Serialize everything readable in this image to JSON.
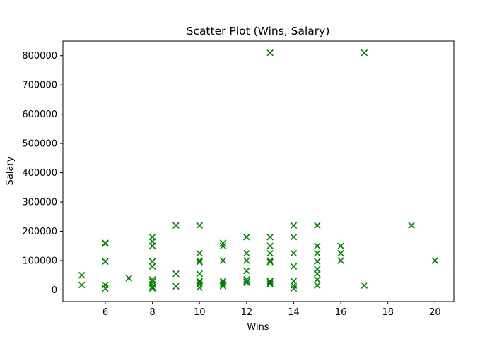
{
  "chart_data": {
    "type": "scatter",
    "title": "Scatter Plot (Wins, Salary)",
    "xlabel": "Wins",
    "ylabel": "Salary",
    "xlim": [
      4.2,
      20.8
    ],
    "ylim": [
      -40000,
      850000
    ],
    "xticks": [
      6,
      8,
      10,
      12,
      14,
      16,
      18,
      20
    ],
    "yticks": [
      0,
      100000,
      200000,
      300000,
      400000,
      500000,
      600000,
      700000,
      800000
    ],
    "grid": false,
    "marker": "x",
    "color": "#008000",
    "series": [
      {
        "points": [
          {
            "x": 5,
            "y": 50000
          },
          {
            "x": 5,
            "y": 17000
          },
          {
            "x": 6,
            "y": 160000
          },
          {
            "x": 6,
            "y": 158000
          },
          {
            "x": 6,
            "y": 97000
          },
          {
            "x": 6,
            "y": 17000
          },
          {
            "x": 6,
            "y": 5000
          },
          {
            "x": 7,
            "y": 40000
          },
          {
            "x": 8,
            "y": 180000
          },
          {
            "x": 8,
            "y": 165000
          },
          {
            "x": 8,
            "y": 150000
          },
          {
            "x": 8,
            "y": 97000
          },
          {
            "x": 8,
            "y": 80000
          },
          {
            "x": 8,
            "y": 35000
          },
          {
            "x": 8,
            "y": 28000
          },
          {
            "x": 8,
            "y": 18000
          },
          {
            "x": 8,
            "y": 10000
          },
          {
            "x": 8,
            "y": 5000
          },
          {
            "x": 9,
            "y": 220000
          },
          {
            "x": 9,
            "y": 55000
          },
          {
            "x": 9,
            "y": 12000
          },
          {
            "x": 10,
            "y": 220000
          },
          {
            "x": 10,
            "y": 125000
          },
          {
            "x": 10,
            "y": 100000
          },
          {
            "x": 10,
            "y": 95000
          },
          {
            "x": 10,
            "y": 55000
          },
          {
            "x": 10,
            "y": 30000
          },
          {
            "x": 10,
            "y": 25000
          },
          {
            "x": 10,
            "y": 18000
          },
          {
            "x": 10,
            "y": 8000
          },
          {
            "x": 11,
            "y": 160000
          },
          {
            "x": 11,
            "y": 150000
          },
          {
            "x": 11,
            "y": 100000
          },
          {
            "x": 11,
            "y": 30000
          },
          {
            "x": 11,
            "y": 25000
          },
          {
            "x": 11,
            "y": 18000
          },
          {
            "x": 11,
            "y": 13000
          },
          {
            "x": 12,
            "y": 180000
          },
          {
            "x": 12,
            "y": 125000
          },
          {
            "x": 12,
            "y": 100000
          },
          {
            "x": 12,
            "y": 65000
          },
          {
            "x": 12,
            "y": 35000
          },
          {
            "x": 12,
            "y": 28000
          },
          {
            "x": 12,
            "y": 25000
          },
          {
            "x": 13,
            "y": 810000
          },
          {
            "x": 13,
            "y": 180000
          },
          {
            "x": 13,
            "y": 150000
          },
          {
            "x": 13,
            "y": 125000
          },
          {
            "x": 13,
            "y": 100000
          },
          {
            "x": 13,
            "y": 95000
          },
          {
            "x": 13,
            "y": 30000
          },
          {
            "x": 13,
            "y": 25000
          },
          {
            "x": 13,
            "y": 20000
          },
          {
            "x": 14,
            "y": 220000
          },
          {
            "x": 14,
            "y": 180000
          },
          {
            "x": 14,
            "y": 125000
          },
          {
            "x": 14,
            "y": 80000
          },
          {
            "x": 14,
            "y": 30000
          },
          {
            "x": 14,
            "y": 15000
          },
          {
            "x": 14,
            "y": 5000
          },
          {
            "x": 15,
            "y": 220000
          },
          {
            "x": 15,
            "y": 150000
          },
          {
            "x": 15,
            "y": 125000
          },
          {
            "x": 15,
            "y": 97000
          },
          {
            "x": 15,
            "y": 70000
          },
          {
            "x": 15,
            "y": 55000
          },
          {
            "x": 15,
            "y": 35000
          },
          {
            "x": 15,
            "y": 15000
          },
          {
            "x": 16,
            "y": 150000
          },
          {
            "x": 16,
            "y": 125000
          },
          {
            "x": 16,
            "y": 100000
          },
          {
            "x": 17,
            "y": 810000
          },
          {
            "x": 17,
            "y": 15000
          },
          {
            "x": 19,
            "y": 220000
          },
          {
            "x": 20,
            "y": 100000
          }
        ]
      }
    ]
  }
}
